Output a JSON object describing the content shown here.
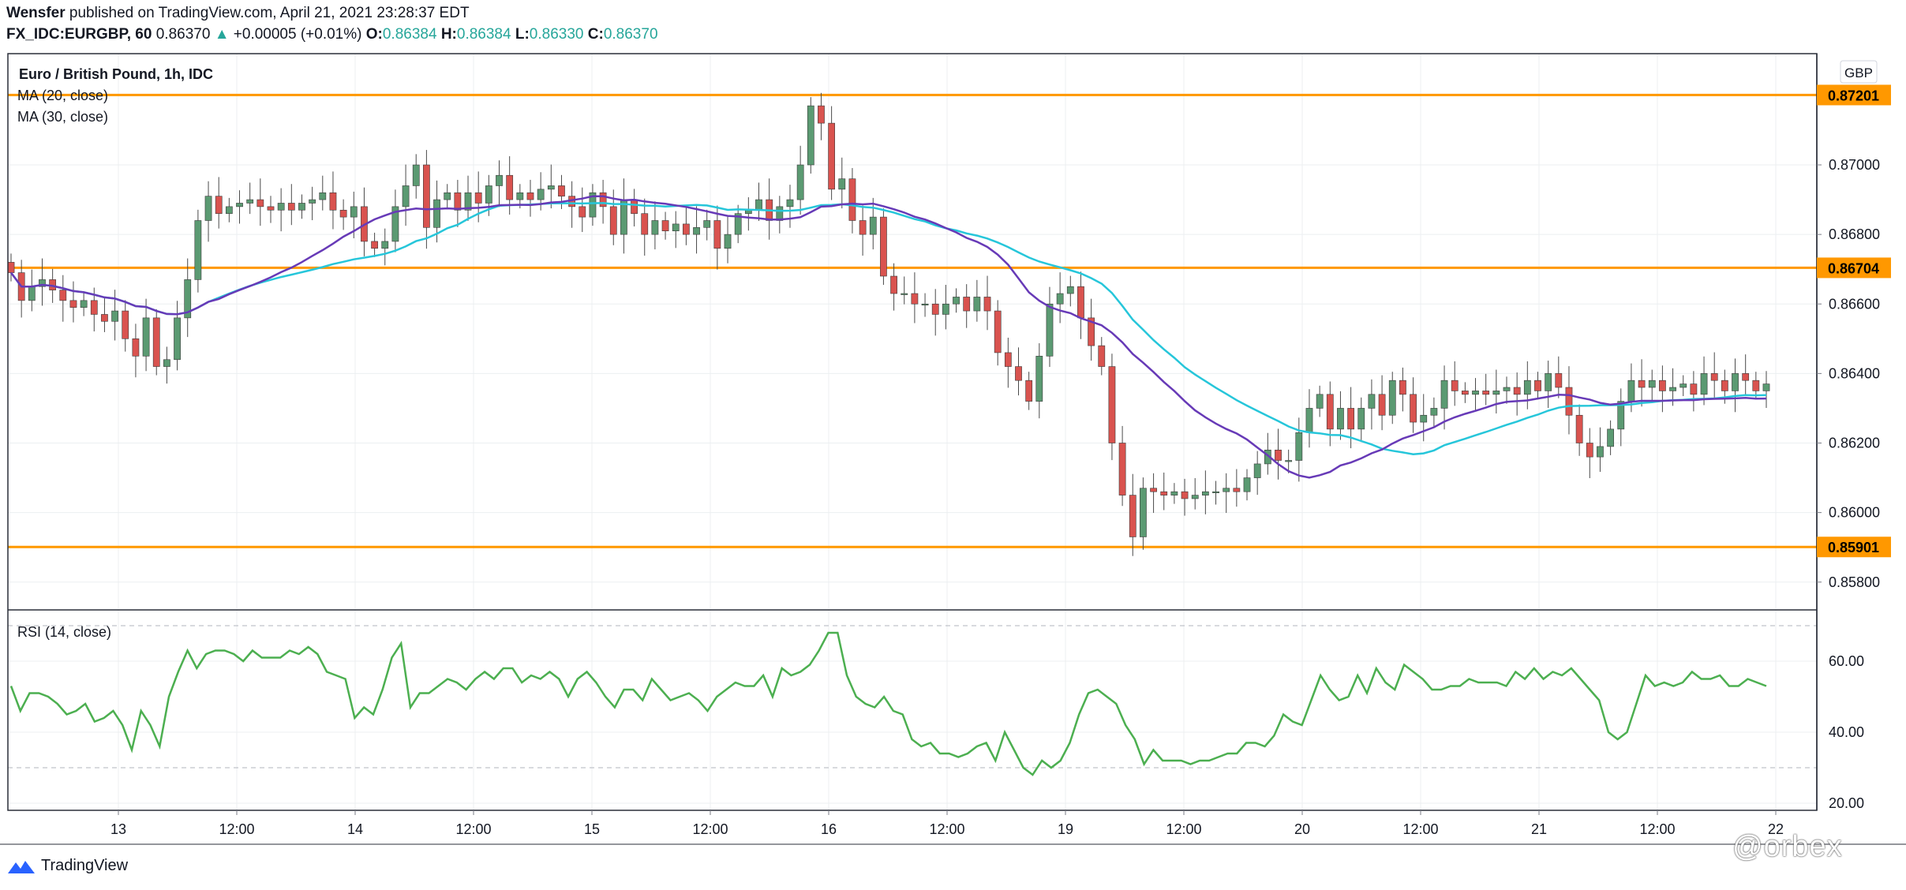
{
  "header": {
    "author": "Wensfer",
    "published_text": "published on TradingView.com, April 21, 2021 23:28:37 EDT",
    "symbol": "FX_IDC:EURGBP, 60",
    "last": "0.86370",
    "change": "+0.00005 (+0.01%)",
    "o_label": "O:",
    "o": "0.86384",
    "h_label": "H:",
    "h": "0.86384",
    "l_label": "L:",
    "l": "0.86330",
    "c_label": "C:",
    "c": "0.86370"
  },
  "legend": {
    "title": "Euro / British Pound, 1h, IDC",
    "ma20": "MA (20, close)",
    "ma30": "MA (30, close)",
    "currency": "GBP",
    "rsi": "RSI (14, close)"
  },
  "footer": {
    "brand": "TradingView"
  },
  "watermark": "@orbex",
  "colors": {
    "up": "#26a69a",
    "down": "#ef5350",
    "candle_up": "#5b9a72",
    "candle_down": "#d9534f",
    "ma20": "#673ab7",
    "ma30": "#26c6da",
    "hline": "#ff9800",
    "rsi": "#4caf50",
    "grid": "#eceff1",
    "text": "#131722"
  },
  "chart_data": [
    {
      "type": "candlestick",
      "title": "Euro / British Pound, 1h, IDC",
      "ylim": [
        0.8572,
        0.8732
      ],
      "y_ticks": [
        0.858,
        0.86,
        0.862,
        0.864,
        0.866,
        0.868,
        0.87
      ],
      "x_ticks": [
        "13",
        "12:00",
        "14",
        "12:00",
        "15",
        "12:00",
        "16",
        "12:00",
        "19",
        "12:00",
        "20",
        "12:00",
        "21",
        "12:00",
        "22"
      ],
      "horizontal_lines": [
        {
          "value": 0.87201,
          "label": "0.87201"
        },
        {
          "value": 0.86704,
          "label": "0.86704"
        },
        {
          "value": 0.85901,
          "label": "0.85901"
        }
      ],
      "series": [
        {
          "name": "EURGBP close",
          "values": [
            0.8669,
            0.8661,
            0.8665,
            0.8667,
            0.8664,
            0.8661,
            0.8659,
            0.8661,
            0.8657,
            0.8655,
            0.8658,
            0.865,
            0.8645,
            0.8656,
            0.8642,
            0.8644,
            0.8656,
            0.8667,
            0.8684,
            0.8691,
            0.8686,
            0.8688,
            0.8689,
            0.869,
            0.8688,
            0.8687,
            0.8689,
            0.8687,
            0.8689,
            0.869,
            0.8692,
            0.8687,
            0.8685,
            0.8688,
            0.8678,
            0.8676,
            0.8678,
            0.8688,
            0.8694,
            0.87,
            0.8682,
            0.869,
            0.8692,
            0.8687,
            0.8692,
            0.8689,
            0.8694,
            0.8697,
            0.869,
            0.8692,
            0.869,
            0.8693,
            0.8694,
            0.8691,
            0.8688,
            0.8685,
            0.8692,
            0.8688,
            0.868,
            0.869,
            0.8686,
            0.868,
            0.8684,
            0.8681,
            0.8683,
            0.868,
            0.8682,
            0.8684,
            0.8676,
            0.868,
            0.8686,
            0.8687,
            0.869,
            0.8684,
            0.8688,
            0.869,
            0.87,
            0.8717,
            0.8712,
            0.8693,
            0.8696,
            0.8684,
            0.868,
            0.8685,
            0.8668,
            0.8663,
            0.8663,
            0.866,
            0.866,
            0.8657,
            0.866,
            0.8662,
            0.8658,
            0.8662,
            0.8658,
            0.8646,
            0.8642,
            0.8638,
            0.8632,
            0.8645,
            0.866,
            0.8663,
            0.8665,
            0.8656,
            0.8648,
            0.8642,
            0.862,
            0.8605,
            0.8593,
            0.8607,
            0.8606,
            0.8605,
            0.8606,
            0.8604,
            0.8605,
            0.8606,
            0.8606,
            0.8607,
            0.8606,
            0.861,
            0.8614,
            0.8618,
            0.8615,
            0.8615,
            0.8623,
            0.863,
            0.8634,
            0.8624,
            0.863,
            0.8624,
            0.863,
            0.8634,
            0.8628,
            0.8638,
            0.8634,
            0.8626,
            0.8628,
            0.863,
            0.8638,
            0.8635,
            0.8634,
            0.8635,
            0.8634,
            0.8635,
            0.8636,
            0.8634,
            0.8638,
            0.8635,
            0.864,
            0.8636,
            0.8628,
            0.862,
            0.8616,
            0.8619,
            0.8624,
            0.8632,
            0.8638,
            0.8636,
            0.8638,
            0.8635,
            0.8636,
            0.8637,
            0.8634,
            0.864,
            0.8638,
            0.8635,
            0.864,
            0.8638,
            0.8635,
            0.8637
          ]
        },
        {
          "name": "MA (20, close)",
          "values": []
        },
        {
          "name": "MA (30, close)",
          "values": []
        }
      ]
    },
    {
      "type": "line",
      "title": "RSI (14, close)",
      "ylim": [
        18,
        74
      ],
      "y_ticks": [
        20,
        40,
        60
      ],
      "bands": [
        30,
        70
      ],
      "series": [
        {
          "name": "RSI (14, close)",
          "values": [
            53,
            46,
            51,
            51,
            50,
            48,
            45,
            46,
            48,
            43,
            44,
            46,
            42,
            35,
            46,
            42,
            36,
            50,
            57,
            63,
            58,
            62,
            63,
            63,
            62,
            60,
            63,
            61,
            61,
            61,
            63,
            62,
            64,
            62,
            57,
            56,
            55,
            44,
            47,
            45,
            52,
            61,
            65,
            47,
            51,
            51,
            53,
            55,
            54,
            52,
            55,
            57,
            55,
            58,
            58,
            54,
            56,
            55,
            57,
            55,
            50,
            55,
            57,
            54,
            50,
            47,
            52,
            52,
            49,
            55,
            52,
            49,
            50,
            51,
            49,
            46,
            50,
            52,
            54,
            53,
            53,
            56,
            50,
            58,
            56,
            57,
            59,
            63,
            68,
            68,
            56,
            50,
            48,
            47,
            50,
            46,
            45,
            38,
            36,
            37,
            34,
            34,
            33,
            34,
            36,
            37,
            32,
            40,
            35,
            30,
            28,
            32,
            30,
            32,
            37,
            45,
            51,
            52,
            50,
            48,
            42,
            38,
            31,
            35,
            32,
            32,
            32,
            31,
            32,
            32,
            33,
            34,
            34,
            37,
            37,
            36,
            39,
            45,
            43,
            42,
            49,
            56,
            52,
            49,
            50,
            56,
            51,
            58,
            54,
            52,
            59,
            57,
            55,
            52,
            52,
            53,
            53,
            55,
            54,
            54,
            54,
            53,
            57,
            55,
            58,
            55,
            57,
            56,
            58,
            55,
            52,
            49,
            40,
            38,
            40,
            48,
            56,
            53,
            54,
            53,
            54,
            57,
            55,
            55,
            56,
            53,
            53,
            55,
            54,
            53
          ]
        }
      ]
    }
  ]
}
